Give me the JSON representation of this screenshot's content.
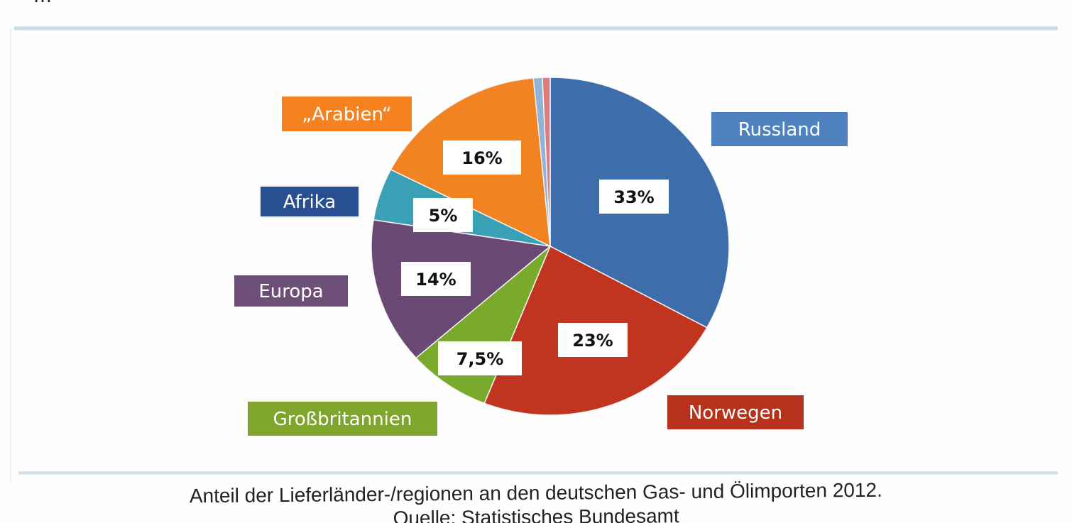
{
  "header_fragment": {
    "text": "…"
  },
  "chart_data": {
    "type": "pie",
    "title": "",
    "start_angle_deg": 0,
    "direction": "clockwise",
    "slices": [
      {
        "name": "Russland",
        "value": 33,
        "label": "33%",
        "color": "#3d6eab",
        "legend_color": "#4e81c0"
      },
      {
        "name": "Norwegen",
        "value": 23,
        "label": "23%",
        "color": "#c1341f",
        "legend_color": "#b7321d"
      },
      {
        "name": "Großbritannien",
        "value": 7.5,
        "label": "7,5%",
        "color": "#7aaa2c",
        "legend_color": "#7ea62c"
      },
      {
        "name": "Europa",
        "value": 14,
        "label": "14%",
        "color": "#6a4a75",
        "legend_color": "#6d4f78"
      },
      {
        "name": "Afrika",
        "value": 5,
        "label": "5%",
        "color": "#3aa0b5",
        "legend_color": "#294f93"
      },
      {
        "name": "„Arabien“",
        "value": 16,
        "label": "16%",
        "color": "#f28322",
        "legend_color": "#f5821f"
      },
      {
        "name": "",
        "value": 0.8,
        "label": "",
        "color": "#8fb3d9"
      },
      {
        "name": "",
        "value": 0.7,
        "label": "",
        "color": "#e07b7b"
      }
    ]
  },
  "caption": {
    "line1": "Anteil der Lieferländer-/regionen an den deutschen Gas- und Ölimporten 2012.",
    "line2": "Quelle: Statistisches Bundesamt"
  }
}
